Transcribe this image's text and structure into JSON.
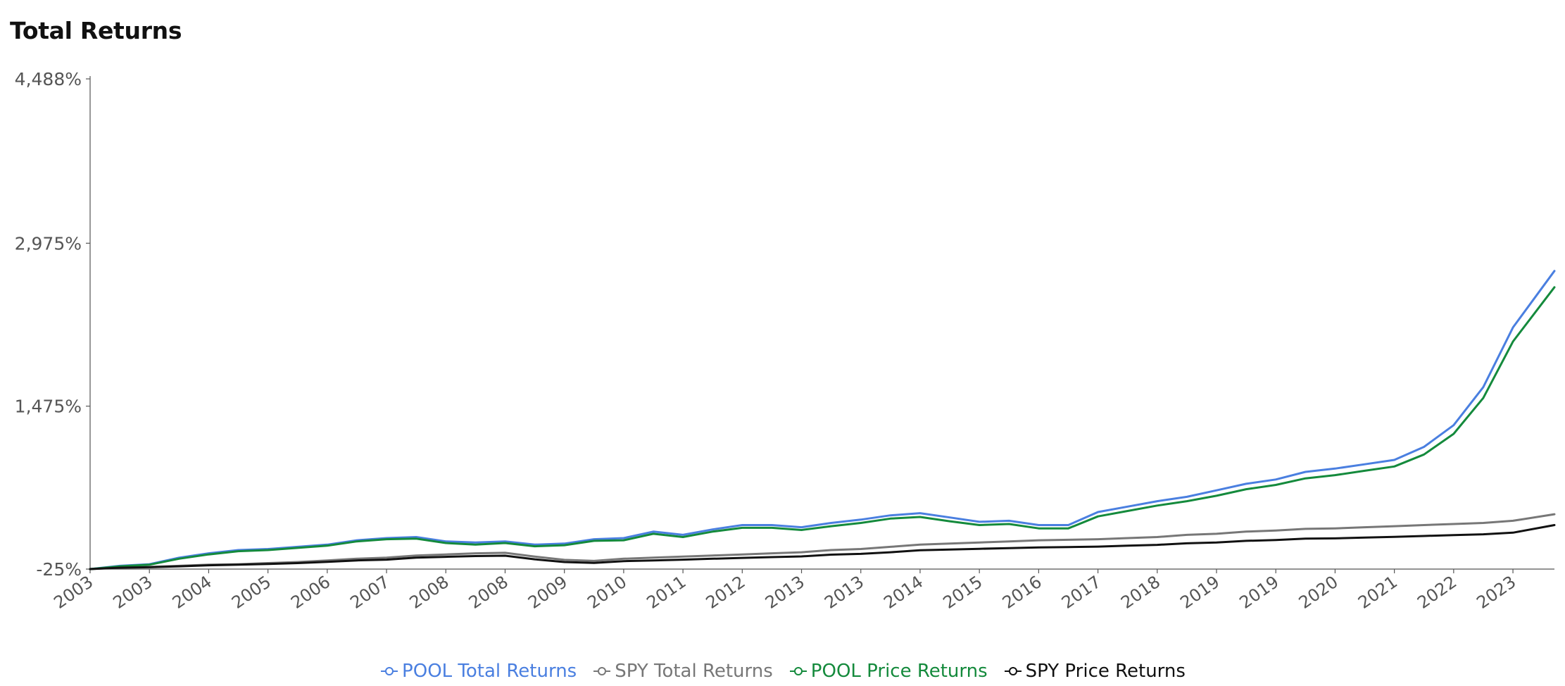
{
  "title": "Total Returns",
  "chart_data": {
    "type": "line",
    "title": "Total Returns",
    "xlabel": "",
    "ylabel": "",
    "y_ticks": [
      -25,
      1475,
      2975,
      4488
    ],
    "y_tick_labels": [
      "-25%",
      "1,475%",
      "2,975%",
      "4,488%"
    ],
    "ylim": [
      -25,
      4488
    ],
    "x_tick_labels": [
      "2003",
      "2003",
      "2004",
      "2005",
      "2006",
      "2007",
      "2008",
      "2008",
      "2009",
      "2010",
      "2011",
      "2012",
      "2013",
      "2013",
      "2014",
      "2015",
      "2016",
      "2017",
      "2018",
      "2019",
      "2019",
      "2020",
      "2021",
      "2022",
      "2023"
    ],
    "x_ticks": [
      2003.0,
      2004.0,
      2005.0,
      2006.0,
      2007.0,
      2008.0,
      2009.0,
      2010.0,
      2011.0,
      2012.0,
      2013.0,
      2014.0,
      2015.0,
      2016.0,
      2017.0,
      2018.0,
      2019.0,
      2020.0,
      2021.0,
      2022.0,
      2023.0,
      2024.0,
      2025.0,
      2026.0,
      2027.0
    ],
    "xlim": [
      2003.0,
      2027.7
    ],
    "grid": false,
    "legend_position": "bottom",
    "series": [
      {
        "name": "POOL Total Returns",
        "color": "#4a7fe0",
        "points": [
          [
            2003.0,
            -25
          ],
          [
            2003.5,
            5
          ],
          [
            2004.0,
            20
          ],
          [
            2004.5,
            80
          ],
          [
            2005.0,
            120
          ],
          [
            2005.5,
            150
          ],
          [
            2006.0,
            160
          ],
          [
            2006.5,
            180
          ],
          [
            2007.0,
            200
          ],
          [
            2007.5,
            240
          ],
          [
            2008.0,
            260
          ],
          [
            2008.5,
            270
          ],
          [
            2009.0,
            230
          ],
          [
            2009.5,
            220
          ],
          [
            2010.0,
            230
          ],
          [
            2010.5,
            200
          ],
          [
            2011.0,
            210
          ],
          [
            2011.5,
            250
          ],
          [
            2012.0,
            260
          ],
          [
            2012.5,
            320
          ],
          [
            2013.0,
            290
          ],
          [
            2013.5,
            340
          ],
          [
            2014.0,
            380
          ],
          [
            2014.5,
            380
          ],
          [
            2015.0,
            360
          ],
          [
            2015.5,
            400
          ],
          [
            2016.0,
            430
          ],
          [
            2016.5,
            470
          ],
          [
            2017.0,
            490
          ],
          [
            2017.5,
            450
          ],
          [
            2018.0,
            410
          ],
          [
            2018.5,
            420
          ],
          [
            2019.0,
            380
          ],
          [
            2019.5,
            380
          ],
          [
            2020.0,
            500
          ],
          [
            2020.5,
            550
          ],
          [
            2021.0,
            600
          ],
          [
            2021.5,
            640
          ],
          [
            2022.0,
            700
          ],
          [
            2022.5,
            760
          ],
          [
            2023.0,
            800
          ],
          [
            2023.5,
            870
          ],
          [
            2024.0,
            900
          ],
          [
            2024.5,
            940
          ],
          [
            2025.0,
            980
          ],
          [
            2025.5,
            1100
          ],
          [
            2026.0,
            1300
          ],
          [
            2026.5,
            1650
          ],
          [
            2027.0,
            2200
          ],
          [
            2027.7,
            2720
          ]
        ]
      },
      {
        "name": "SPY Total Returns",
        "color": "#777777",
        "points": [
          [
            2003.0,
            -25
          ],
          [
            2003.5,
            -10
          ],
          [
            2004.0,
            -5
          ],
          [
            2004.5,
            5
          ],
          [
            2005.0,
            15
          ],
          [
            2005.5,
            20
          ],
          [
            2006.0,
            30
          ],
          [
            2006.5,
            40
          ],
          [
            2007.0,
            55
          ],
          [
            2007.5,
            70
          ],
          [
            2008.0,
            80
          ],
          [
            2008.5,
            100
          ],
          [
            2009.0,
            110
          ],
          [
            2009.5,
            120
          ],
          [
            2010.0,
            125
          ],
          [
            2010.5,
            90
          ],
          [
            2011.0,
            60
          ],
          [
            2011.5,
            50
          ],
          [
            2012.0,
            70
          ],
          [
            2012.5,
            80
          ],
          [
            2013.0,
            90
          ],
          [
            2013.5,
            100
          ],
          [
            2014.0,
            110
          ],
          [
            2014.5,
            120
          ],
          [
            2015.0,
            130
          ],
          [
            2015.5,
            150
          ],
          [
            2016.0,
            160
          ],
          [
            2016.5,
            180
          ],
          [
            2017.0,
            200
          ],
          [
            2017.5,
            210
          ],
          [
            2018.0,
            220
          ],
          [
            2018.5,
            230
          ],
          [
            2019.0,
            240
          ],
          [
            2019.5,
            245
          ],
          [
            2020.0,
            250
          ],
          [
            2020.5,
            260
          ],
          [
            2021.0,
            270
          ],
          [
            2021.5,
            290
          ],
          [
            2022.0,
            300
          ],
          [
            2022.5,
            320
          ],
          [
            2023.0,
            330
          ],
          [
            2023.5,
            345
          ],
          [
            2024.0,
            350
          ],
          [
            2024.5,
            360
          ],
          [
            2025.0,
            370
          ],
          [
            2025.5,
            380
          ],
          [
            2026.0,
            390
          ],
          [
            2026.5,
            400
          ],
          [
            2027.0,
            420
          ],
          [
            2027.7,
            480
          ]
        ]
      },
      {
        "name": "POOL Price Returns",
        "color": "#148a3c",
        "points": [
          [
            2003.0,
            -25
          ],
          [
            2003.5,
            0
          ],
          [
            2004.0,
            15
          ],
          [
            2004.5,
            70
          ],
          [
            2005.0,
            110
          ],
          [
            2005.5,
            140
          ],
          [
            2006.0,
            150
          ],
          [
            2006.5,
            170
          ],
          [
            2007.0,
            190
          ],
          [
            2007.5,
            230
          ],
          [
            2008.0,
            250
          ],
          [
            2008.5,
            255
          ],
          [
            2009.0,
            215
          ],
          [
            2009.5,
            200
          ],
          [
            2010.0,
            215
          ],
          [
            2010.5,
            185
          ],
          [
            2011.0,
            195
          ],
          [
            2011.5,
            235
          ],
          [
            2012.0,
            240
          ],
          [
            2012.5,
            300
          ],
          [
            2013.0,
            270
          ],
          [
            2013.5,
            320
          ],
          [
            2014.0,
            355
          ],
          [
            2014.5,
            355
          ],
          [
            2015.0,
            335
          ],
          [
            2015.5,
            370
          ],
          [
            2016.0,
            400
          ],
          [
            2016.5,
            440
          ],
          [
            2017.0,
            455
          ],
          [
            2017.5,
            415
          ],
          [
            2018.0,
            380
          ],
          [
            2018.5,
            390
          ],
          [
            2019.0,
            350
          ],
          [
            2019.5,
            350
          ],
          [
            2020.0,
            460
          ],
          [
            2020.5,
            510
          ],
          [
            2021.0,
            560
          ],
          [
            2021.5,
            600
          ],
          [
            2022.0,
            650
          ],
          [
            2022.5,
            710
          ],
          [
            2023.0,
            750
          ],
          [
            2023.5,
            810
          ],
          [
            2024.0,
            840
          ],
          [
            2024.5,
            880
          ],
          [
            2025.0,
            920
          ],
          [
            2025.5,
            1030
          ],
          [
            2026.0,
            1220
          ],
          [
            2026.5,
            1550
          ],
          [
            2027.0,
            2070
          ],
          [
            2027.7,
            2570
          ]
        ]
      },
      {
        "name": "SPY Price Returns",
        "color": "#111111",
        "points": [
          [
            2003.0,
            -25
          ],
          [
            2003.5,
            -12
          ],
          [
            2004.0,
            -8
          ],
          [
            2004.5,
            0
          ],
          [
            2005.0,
            10
          ],
          [
            2005.5,
            15
          ],
          [
            2006.0,
            22
          ],
          [
            2006.5,
            30
          ],
          [
            2007.0,
            42
          ],
          [
            2007.5,
            55
          ],
          [
            2008.0,
            62
          ],
          [
            2008.5,
            80
          ],
          [
            2009.0,
            88
          ],
          [
            2009.5,
            95
          ],
          [
            2010.0,
            98
          ],
          [
            2010.5,
            65
          ],
          [
            2011.0,
            40
          ],
          [
            2011.5,
            32
          ],
          [
            2012.0,
            48
          ],
          [
            2012.5,
            55
          ],
          [
            2013.0,
            62
          ],
          [
            2013.5,
            70
          ],
          [
            2014.0,
            78
          ],
          [
            2014.5,
            85
          ],
          [
            2015.0,
            92
          ],
          [
            2015.5,
            108
          ],
          [
            2016.0,
            115
          ],
          [
            2016.5,
            130
          ],
          [
            2017.0,
            148
          ],
          [
            2017.5,
            155
          ],
          [
            2018.0,
            162
          ],
          [
            2018.5,
            168
          ],
          [
            2019.0,
            175
          ],
          [
            2019.5,
            178
          ],
          [
            2020.0,
            182
          ],
          [
            2020.5,
            190
          ],
          [
            2021.0,
            198
          ],
          [
            2021.5,
            212
          ],
          [
            2022.0,
            220
          ],
          [
            2022.5,
            235
          ],
          [
            2023.0,
            242
          ],
          [
            2023.5,
            255
          ],
          [
            2024.0,
            258
          ],
          [
            2024.5,
            265
          ],
          [
            2025.0,
            272
          ],
          [
            2025.5,
            280
          ],
          [
            2026.0,
            288
          ],
          [
            2026.5,
            295
          ],
          [
            2027.0,
            310
          ],
          [
            2027.7,
            380
          ]
        ]
      }
    ]
  }
}
